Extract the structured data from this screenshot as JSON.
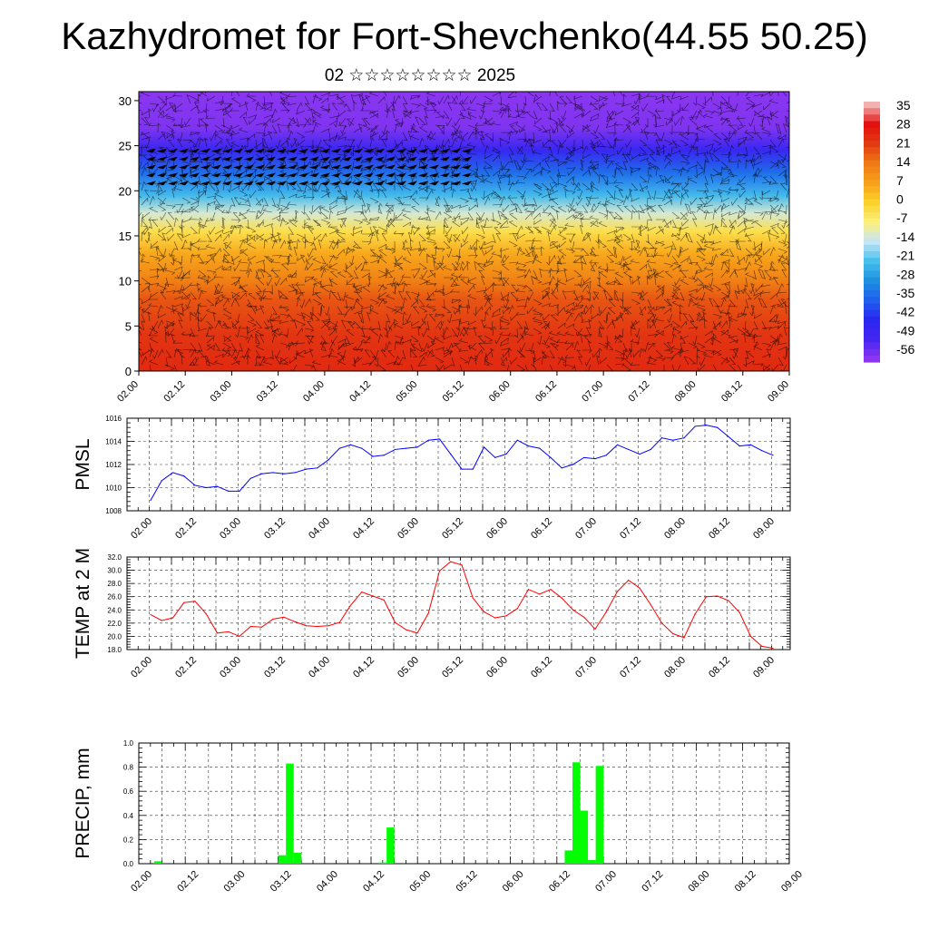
{
  "title": "Kazhydromet for Fort-Shevchenko(44.55 50.25)",
  "subtitle": "02 ☆☆☆☆☆☆☆☆ 2025",
  "chart_data": [
    {
      "type": "heatmap",
      "description_axis": "height",
      "ylim": [
        0,
        31
      ],
      "y_ticks": [
        "0",
        "5",
        "10",
        "15",
        "20",
        "25",
        "30"
      ],
      "x_ticks": [
        "02.00",
        "02.12",
        "03.00",
        "03.12",
        "04.00",
        "04.12",
        "05.00",
        "05.12",
        "06.00",
        "06.12",
        "07.00",
        "07.12",
        "08.00",
        "08.12",
        "09.00"
      ],
      "colorbar_labels": [
        "35",
        "28",
        "21",
        "14",
        "7",
        "0",
        "-7",
        "-14",
        "-21",
        "-28",
        "-35",
        "-42",
        "-49",
        "-56"
      ],
      "colorbar_colors": [
        "#f3b2b2",
        "#e31010",
        "#e23b12",
        "#ef7a14",
        "#f7a11a",
        "#fcd22a",
        "#fdf07a",
        "#c6e6f6",
        "#48c0ee",
        "#1d90e0",
        "#2060ee",
        "#2828f0",
        "#4426f2",
        "#8a36f0"
      ],
      "temperature_profile": [
        {
          "h": 0,
          "t": 24
        },
        {
          "h": 4,
          "t": 22
        },
        {
          "h": 8,
          "t": 18
        },
        {
          "h": 10,
          "t": 13
        },
        {
          "h": 13,
          "t": 6
        },
        {
          "h": 15.5,
          "t": -3
        },
        {
          "h": 17.5,
          "t": -12
        },
        {
          "h": 19.5,
          "t": -22
        },
        {
          "h": 22,
          "t": -33
        },
        {
          "h": 24.5,
          "t": -46
        },
        {
          "h": 27,
          "t": -55
        },
        {
          "h": 31,
          "t": -60
        }
      ]
    },
    {
      "type": "line",
      "ylabel": "PMSL",
      "ylim": [
        1008,
        1016
      ],
      "y_ticks": [
        "1008",
        "1010",
        "1012",
        "1014",
        "1016"
      ],
      "x_ticks": [
        "02.00",
        "02.12",
        "03.00",
        "03.12",
        "04.00",
        "04.12",
        "05.00",
        "05.12",
        "06.00",
        "06.12",
        "07.00",
        "07.12",
        "08.00",
        "08.12",
        "09.00"
      ],
      "color": "#0000ff",
      "values": [
        1008.9,
        1010.6,
        1011.3,
        1011.0,
        1010.2,
        1010.0,
        1010.1,
        1009.7,
        1009.7,
        1010.8,
        1011.2,
        1011.3,
        1011.2,
        1011.3,
        1011.6,
        1011.7,
        1012.4,
        1013.4,
        1013.7,
        1013.4,
        1012.7,
        1012.8,
        1013.3,
        1013.4,
        1013.5,
        1014.1,
        1014.2,
        1012.9,
        1011.6,
        1011.6,
        1013.5,
        1012.6,
        1012.9,
        1014.1,
        1013.6,
        1013.4,
        1012.6,
        1011.7,
        1012.0,
        1012.6,
        1012.5,
        1012.8,
        1013.7,
        1013.3,
        1012.9,
        1013.3,
        1014.3,
        1014.1,
        1014.3,
        1015.3,
        1015.4,
        1015.2,
        1014.4,
        1013.6,
        1013.7,
        1013.2,
        1012.8
      ]
    },
    {
      "type": "line",
      "ylabel": "TEMP at 2 M",
      "ylim": [
        18,
        32
      ],
      "y_ticks": [
        "18.0",
        "20.0",
        "22.0",
        "24.0",
        "26.0",
        "28.0",
        "30.0",
        "32.0"
      ],
      "x_ticks": [
        "02.00",
        "02.12",
        "03.00",
        "03.12",
        "04.00",
        "04.12",
        "05.00",
        "05.12",
        "06.00",
        "06.12",
        "07.00",
        "07.12",
        "08.00",
        "08.12",
        "09.00"
      ],
      "color": "#ff0000",
      "values": [
        23.3,
        22.4,
        22.8,
        25.1,
        25.3,
        23.4,
        20.5,
        20.7,
        20.0,
        21.5,
        21.4,
        22.6,
        22.9,
        22.2,
        21.6,
        21.5,
        21.6,
        22.1,
        24.7,
        26.7,
        26.1,
        25.5,
        22.1,
        21.0,
        20.5,
        23.5,
        29.9,
        31.3,
        30.8,
        25.8,
        23.7,
        22.8,
        23.1,
        24.2,
        27.1,
        26.4,
        27.1,
        25.8,
        24.0,
        22.9,
        21.1,
        23.7,
        26.8,
        28.5,
        27.3,
        24.8,
        22.0,
        20.4,
        19.8,
        23.4,
        26.0,
        26.1,
        25.4,
        23.6,
        20.0,
        18.5,
        18.2
      ]
    },
    {
      "type": "bar",
      "ylabel": "PRECIP, mm",
      "ylim": [
        0,
        1.0
      ],
      "y_ticks": [
        "0.0",
        "0.2",
        "0.4",
        "0.6",
        "0.8",
        "1.0"
      ],
      "x_ticks": [
        "02.00",
        "02.12",
        "03.00",
        "03.12",
        "04.00",
        "04.12",
        "05.00",
        "05.12",
        "06.00",
        "06.12",
        "07.00",
        "07.12",
        "08.00",
        "08.12",
        "09.00"
      ],
      "color": "#00ff00",
      "bars": [
        {
          "step": 2,
          "value": 0.02
        },
        {
          "step": 18,
          "value": 0.07
        },
        {
          "step": 19,
          "value": 0.83
        },
        {
          "step": 20,
          "value": 0.09
        },
        {
          "step": 31,
          "value": 0.01
        },
        {
          "step": 32,
          "value": 0.3
        },
        {
          "step": 55,
          "value": 0.11
        },
        {
          "step": 56,
          "value": 0.84
        },
        {
          "step": 57,
          "value": 0.44
        },
        {
          "step": 58,
          "value": 0.03
        },
        {
          "step": 59,
          "value": 0.81
        }
      ],
      "steps_total": 84
    }
  ]
}
